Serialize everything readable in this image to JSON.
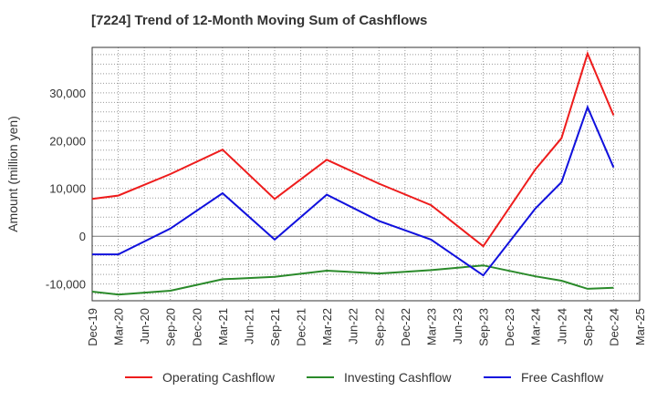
{
  "chart_data": {
    "type": "line",
    "title": "[7224]  Trend of 12-Month Moving Sum of Cashflows",
    "xlabel": "",
    "ylabel": "Amount (million yen)",
    "x": [
      "Dec-19",
      "Mar-20",
      "Jun-20",
      "Sep-20",
      "Dec-20",
      "Mar-21",
      "Jun-21",
      "Sep-21",
      "Dec-21",
      "Mar-22",
      "Jun-22",
      "Sep-22",
      "Dec-22",
      "Mar-23",
      "Jun-23",
      "Sep-23",
      "Dec-23",
      "Mar-24",
      "Jun-24",
      "Sep-24",
      "Dec-24",
      "Mar-25"
    ],
    "ylim": [
      -13500,
      39500
    ],
    "yticks": [
      -10000,
      0,
      10000,
      20000,
      30000
    ],
    "ytick_labels": [
      "-10,000",
      "0",
      "10,000",
      "20,000",
      "30,000"
    ],
    "grid": true,
    "legend_position": "bottom",
    "series": [
      {
        "name": "Operating Cashflow",
        "color": "#ee1c1c",
        "values": [
          7800,
          8500,
          null,
          13000,
          null,
          18100,
          null,
          7800,
          null,
          16000,
          null,
          11000,
          null,
          6500,
          null,
          -2100,
          null,
          14000,
          20500,
          38200,
          25300,
          null
        ]
      },
      {
        "name": "Investing Cashflow",
        "color": "#2a8a2a",
        "values": [
          -11600,
          -12200,
          null,
          -11400,
          null,
          -9000,
          null,
          -8500,
          null,
          -7200,
          null,
          -7800,
          null,
          -7100,
          null,
          -6100,
          null,
          -8400,
          -9300,
          -11000,
          -10800,
          null
        ]
      },
      {
        "name": "Free Cashflow",
        "color": "#1010dd",
        "values": [
          -3800,
          -3800,
          null,
          1600,
          null,
          9000,
          null,
          -700,
          null,
          8700,
          null,
          3200,
          null,
          -700,
          null,
          -8200,
          null,
          5800,
          11300,
          27000,
          14400,
          null
        ]
      }
    ]
  }
}
